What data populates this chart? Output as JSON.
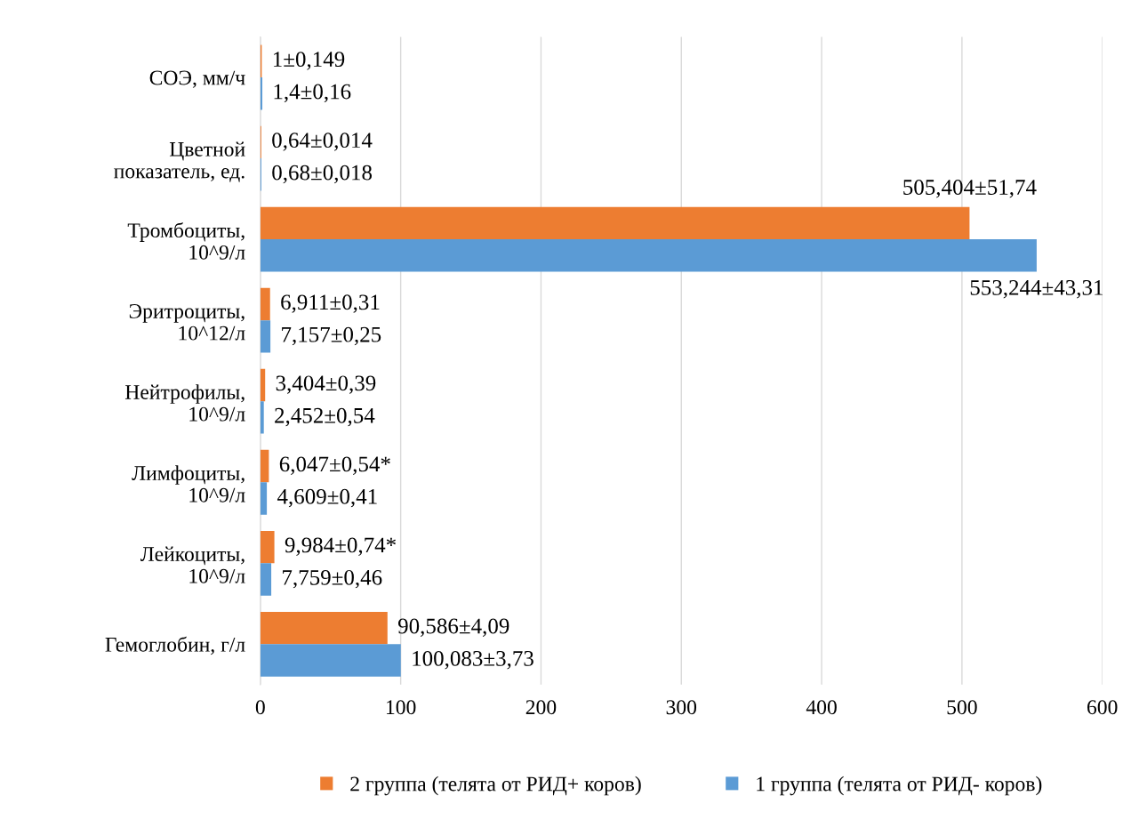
{
  "chart_data": {
    "type": "bar",
    "orientation": "horizontal",
    "categories": [
      "СОЭ, мм/ч",
      "Цветной\nпоказатель, ед.",
      "Тромбоциты,\n10^9/л",
      "Эритроциты,\n10^12/л",
      "Нейтрофилы,\n10^9/л",
      "Лимфоциты,\n10^9/л",
      "Лейкоциты,\n10^9/л",
      "Гемоглобин, г/л"
    ],
    "series": [
      {
        "name": "2 группа (телята от РИД+ коров)",
        "color": "#ed7d31",
        "values": [
          1,
          0.64,
          505.404,
          6.911,
          3.404,
          6.047,
          9.984,
          90.586
        ],
        "value_labels": [
          "1±0,149",
          "0,64±0,014",
          "505,404±51,74",
          "6,911±0,31",
          "3,404±0,39",
          "6,047±0,54*",
          "9,984±0,74*",
          "90,586±4,09"
        ]
      },
      {
        "name": "1 группа (телята от РИД- коров)",
        "color": "#5b9bd5",
        "values": [
          1.4,
          0.68,
          553.244,
          7.157,
          2.452,
          4.609,
          7.759,
          100.083
        ],
        "value_labels": [
          "1,4±0,16",
          "0,68±0,018",
          "553,244±43,31",
          "7,157±0,25",
          "2,452±0,54",
          "4,609±0,41",
          "7,759±0,46",
          "100,083±3,73"
        ]
      }
    ],
    "xlim": [
      0,
      600
    ],
    "xticks": [
      0,
      100,
      200,
      300,
      400,
      500,
      600
    ],
    "grid": "x",
    "legend": "bottom"
  }
}
